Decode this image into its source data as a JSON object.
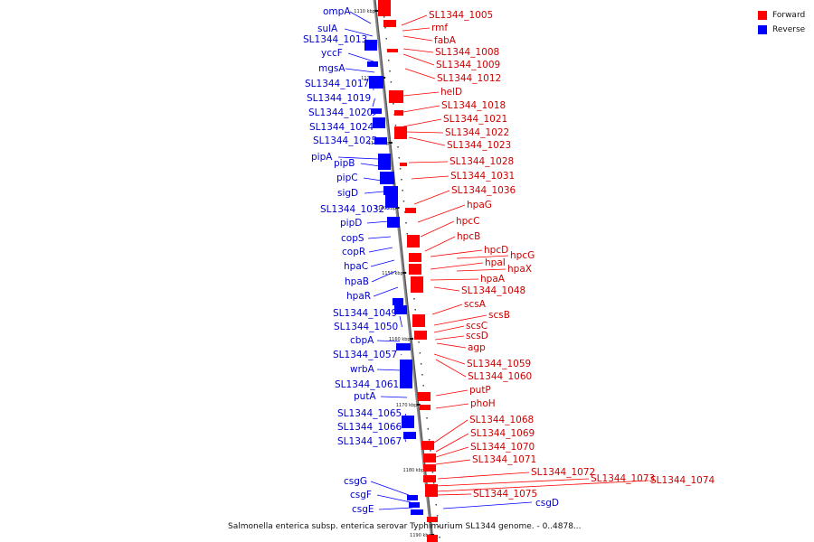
{
  "legend": {
    "forward_label": "Forward",
    "reverse_label": "Reverse",
    "forward_color": "#ff0000",
    "reverse_color": "#0000ff"
  },
  "caption": "Salmonella enterica subsp. enterica serovar Typhimurium SL1344 genome. - 0..4878...",
  "scale_ticks": [
    "1110 kbp",
    "1120 kbp",
    "1130 kbp",
    "1140 kbp",
    "1150 kbp",
    "1160 kbp",
    "1170 kbp",
    "1180 kbp",
    "1190 kbp"
  ],
  "reverse_genes": [
    "ompA",
    "sulA",
    "SL1344_1013",
    "yccF",
    "mgsA",
    "SL1344_1017",
    "SL1344_1019",
    "SL1344_1020",
    "SL1344_1024",
    "SL1344_1025",
    "pipA",
    "pipB",
    "pipC",
    "sigD",
    "SL1344_1032",
    "pipD",
    "copS",
    "copR",
    "hpaC",
    "hpaB",
    "hpaR",
    "SL1344_1049",
    "SL1344_1050",
    "cbpA",
    "SL1344_1057",
    "wrbA",
    "SL1344_1061",
    "putA",
    "SL1344_1065",
    "SL1344_1066",
    "SL1344_1067",
    "csgG",
    "csgF",
    "csgE",
    "csgD"
  ],
  "forward_genes": [
    "SL1344_1005",
    "rmf",
    "fabA",
    "SL1344_1008",
    "SL1344_1009",
    "SL1344_1012",
    "helD",
    "SL1344_1018",
    "SL1344_1021",
    "SL1344_1022",
    "SL1344_1023",
    "SL1344_1028",
    "SL1344_1031",
    "SL1344_1036",
    "hpaG",
    "hpcC",
    "hpcB",
    "hpcD",
    "hpcG",
    "hpaI",
    "hpaX",
    "hpaA",
    "SL1344_1048",
    "scsA",
    "scsB",
    "scsC",
    "scsD",
    "agp",
    "SL1344_1059",
    "SL1344_1060",
    "putP",
    "phoH",
    "SL1344_1068",
    "SL1344_1069",
    "SL1344_1070",
    "SL1344_1071",
    "SL1344_1072",
    "SL1344_1073",
    "SL1344_1074",
    "SL1344_1075"
  ]
}
